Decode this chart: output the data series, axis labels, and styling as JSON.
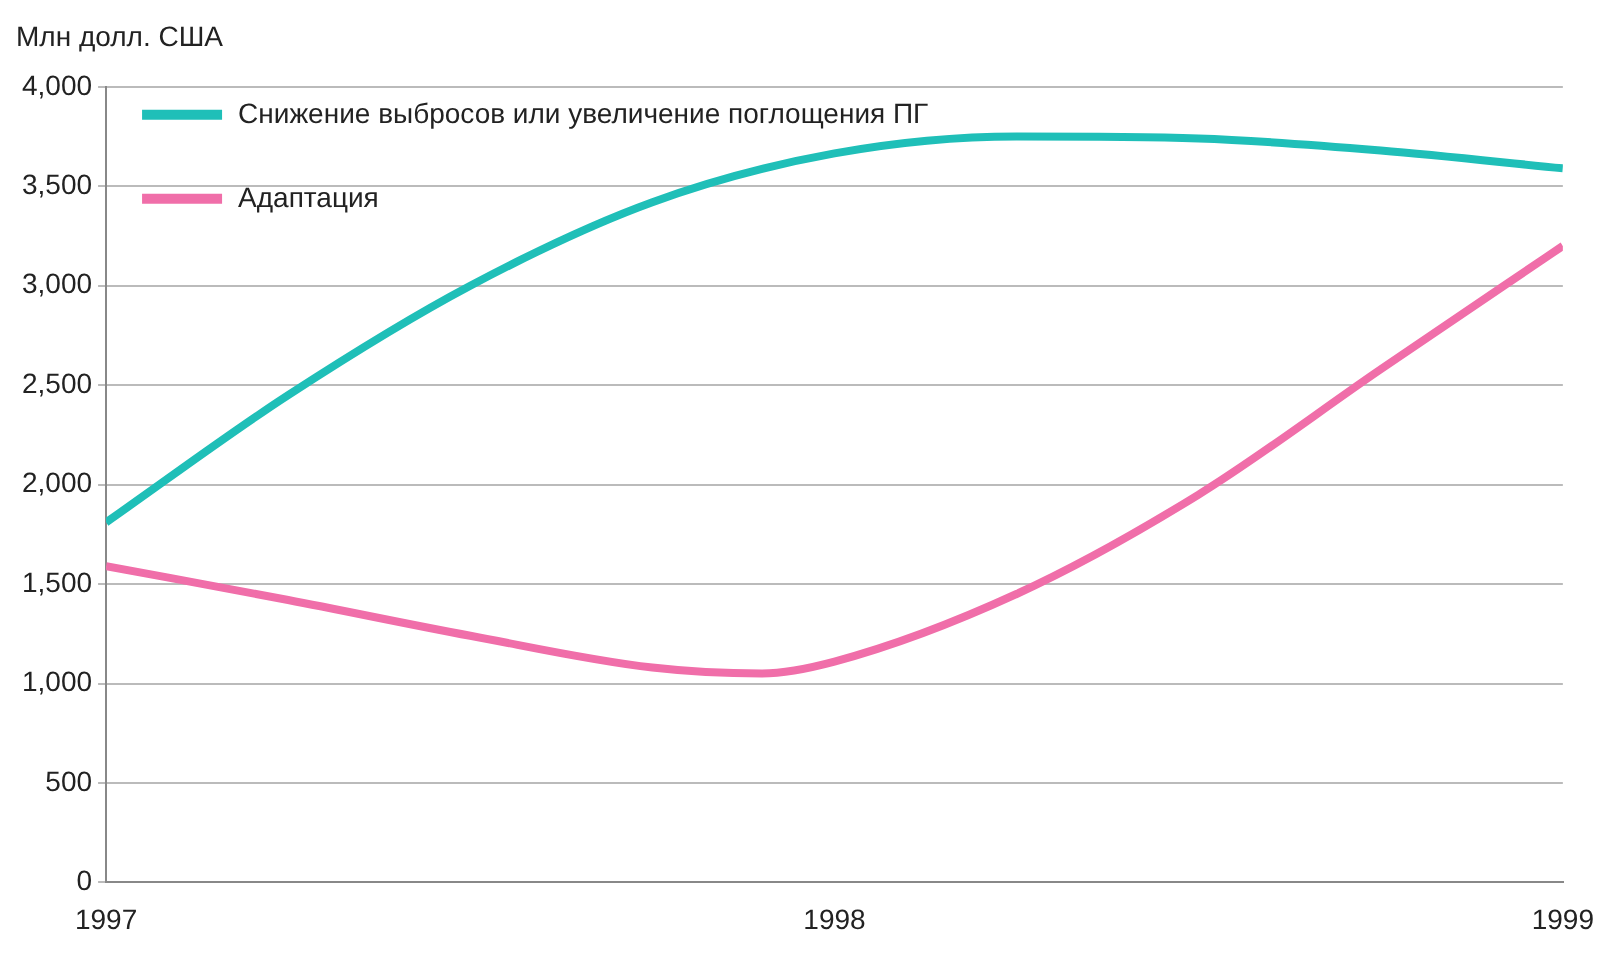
{
  "chart_data": {
    "type": "line",
    "ylabel": "Млн долл. США",
    "xlim": [
      1997,
      1999
    ],
    "xticks": [
      1997,
      1998,
      1999
    ],
    "ylim": [
      0,
      4000
    ],
    "yticks": [
      {
        "value": 0,
        "label": "0"
      },
      {
        "value": 500,
        "label": "500"
      },
      {
        "value": 1000,
        "label": "1,000"
      },
      {
        "value": 1500,
        "label": "1,500"
      },
      {
        "value": 2000,
        "label": "2,000"
      },
      {
        "value": 2500,
        "label": "2,500"
      },
      {
        "value": 3000,
        "label": "3,000"
      },
      {
        "value": 3500,
        "label": "3,500"
      },
      {
        "value": 4000,
        "label": "4,000"
      }
    ],
    "grid": "y",
    "legend": "top left",
    "marker": "none",
    "series": [
      {
        "name": "Снижение выбросов или увеличение поглощения ПГ",
        "color": "#1fbfb8",
        "x": [
          1997,
          1997.25,
          1997.5,
          1997.75,
          1998,
          1998.25,
          1998.5,
          1998.75,
          1999
        ],
        "values": [
          1810,
          2450,
          3000,
          3420,
          3665,
          3750,
          3740,
          3680,
          3590
        ]
      },
      {
        "name": "Адаптация",
        "color": "#f06ea9",
        "x": [
          1997,
          1997.25,
          1997.5,
          1997.75,
          1997.9,
          1998,
          1998.25,
          1998.5,
          1998.75,
          1999
        ],
        "values": [
          1590,
          1420,
          1240,
          1080,
          1050,
          1110,
          1450,
          1950,
          2580,
          3200
        ]
      }
    ]
  }
}
